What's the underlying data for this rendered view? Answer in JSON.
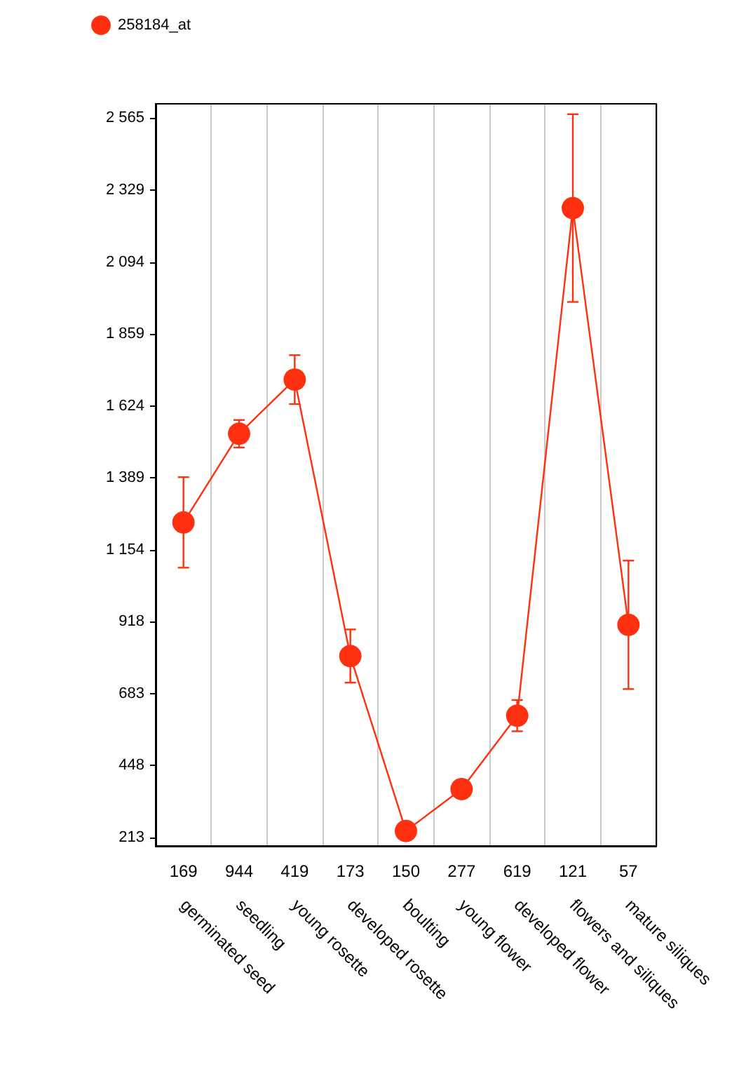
{
  "chart_data": {
    "type": "line",
    "categories": [
      "germinated seed",
      "seedling",
      "young rosette",
      "developed rosette",
      "boulting",
      "young flower",
      "developed flower",
      "flowers and siliques",
      "mature siliques"
    ],
    "series": [
      {
        "name": "258184_at",
        "color": "#ff3010",
        "values": [
          1243,
          1533,
          1710,
          806,
          234,
          371,
          611,
          2271,
          908
        ],
        "errors": [
          148,
          45,
          80,
          87,
          null,
          null,
          51,
          307,
          210
        ]
      }
    ],
    "annotations": [
      "169",
      "944",
      "419",
      "173",
      "150",
      "277",
      "619",
      "121",
      "57"
    ],
    "ylim": [
      185,
      2612
    ],
    "yticks": [
      213,
      448,
      683,
      918,
      {
        "value": 1154,
        "label": "1 154"
      },
      {
        "value": 1389,
        "label": "1 389"
      },
      {
        "value": 1624,
        "label": "1 624"
      },
      {
        "value": 1859,
        "label": "1 859"
      },
      {
        "value": 2094,
        "label": "2 094"
      },
      {
        "value": 2329,
        "label": "2 329"
      },
      {
        "value": 2565,
        "label": "2 565"
      }
    ],
    "grid": "x",
    "legend": "top left",
    "marker": "circle",
    "line_style": "solid"
  }
}
